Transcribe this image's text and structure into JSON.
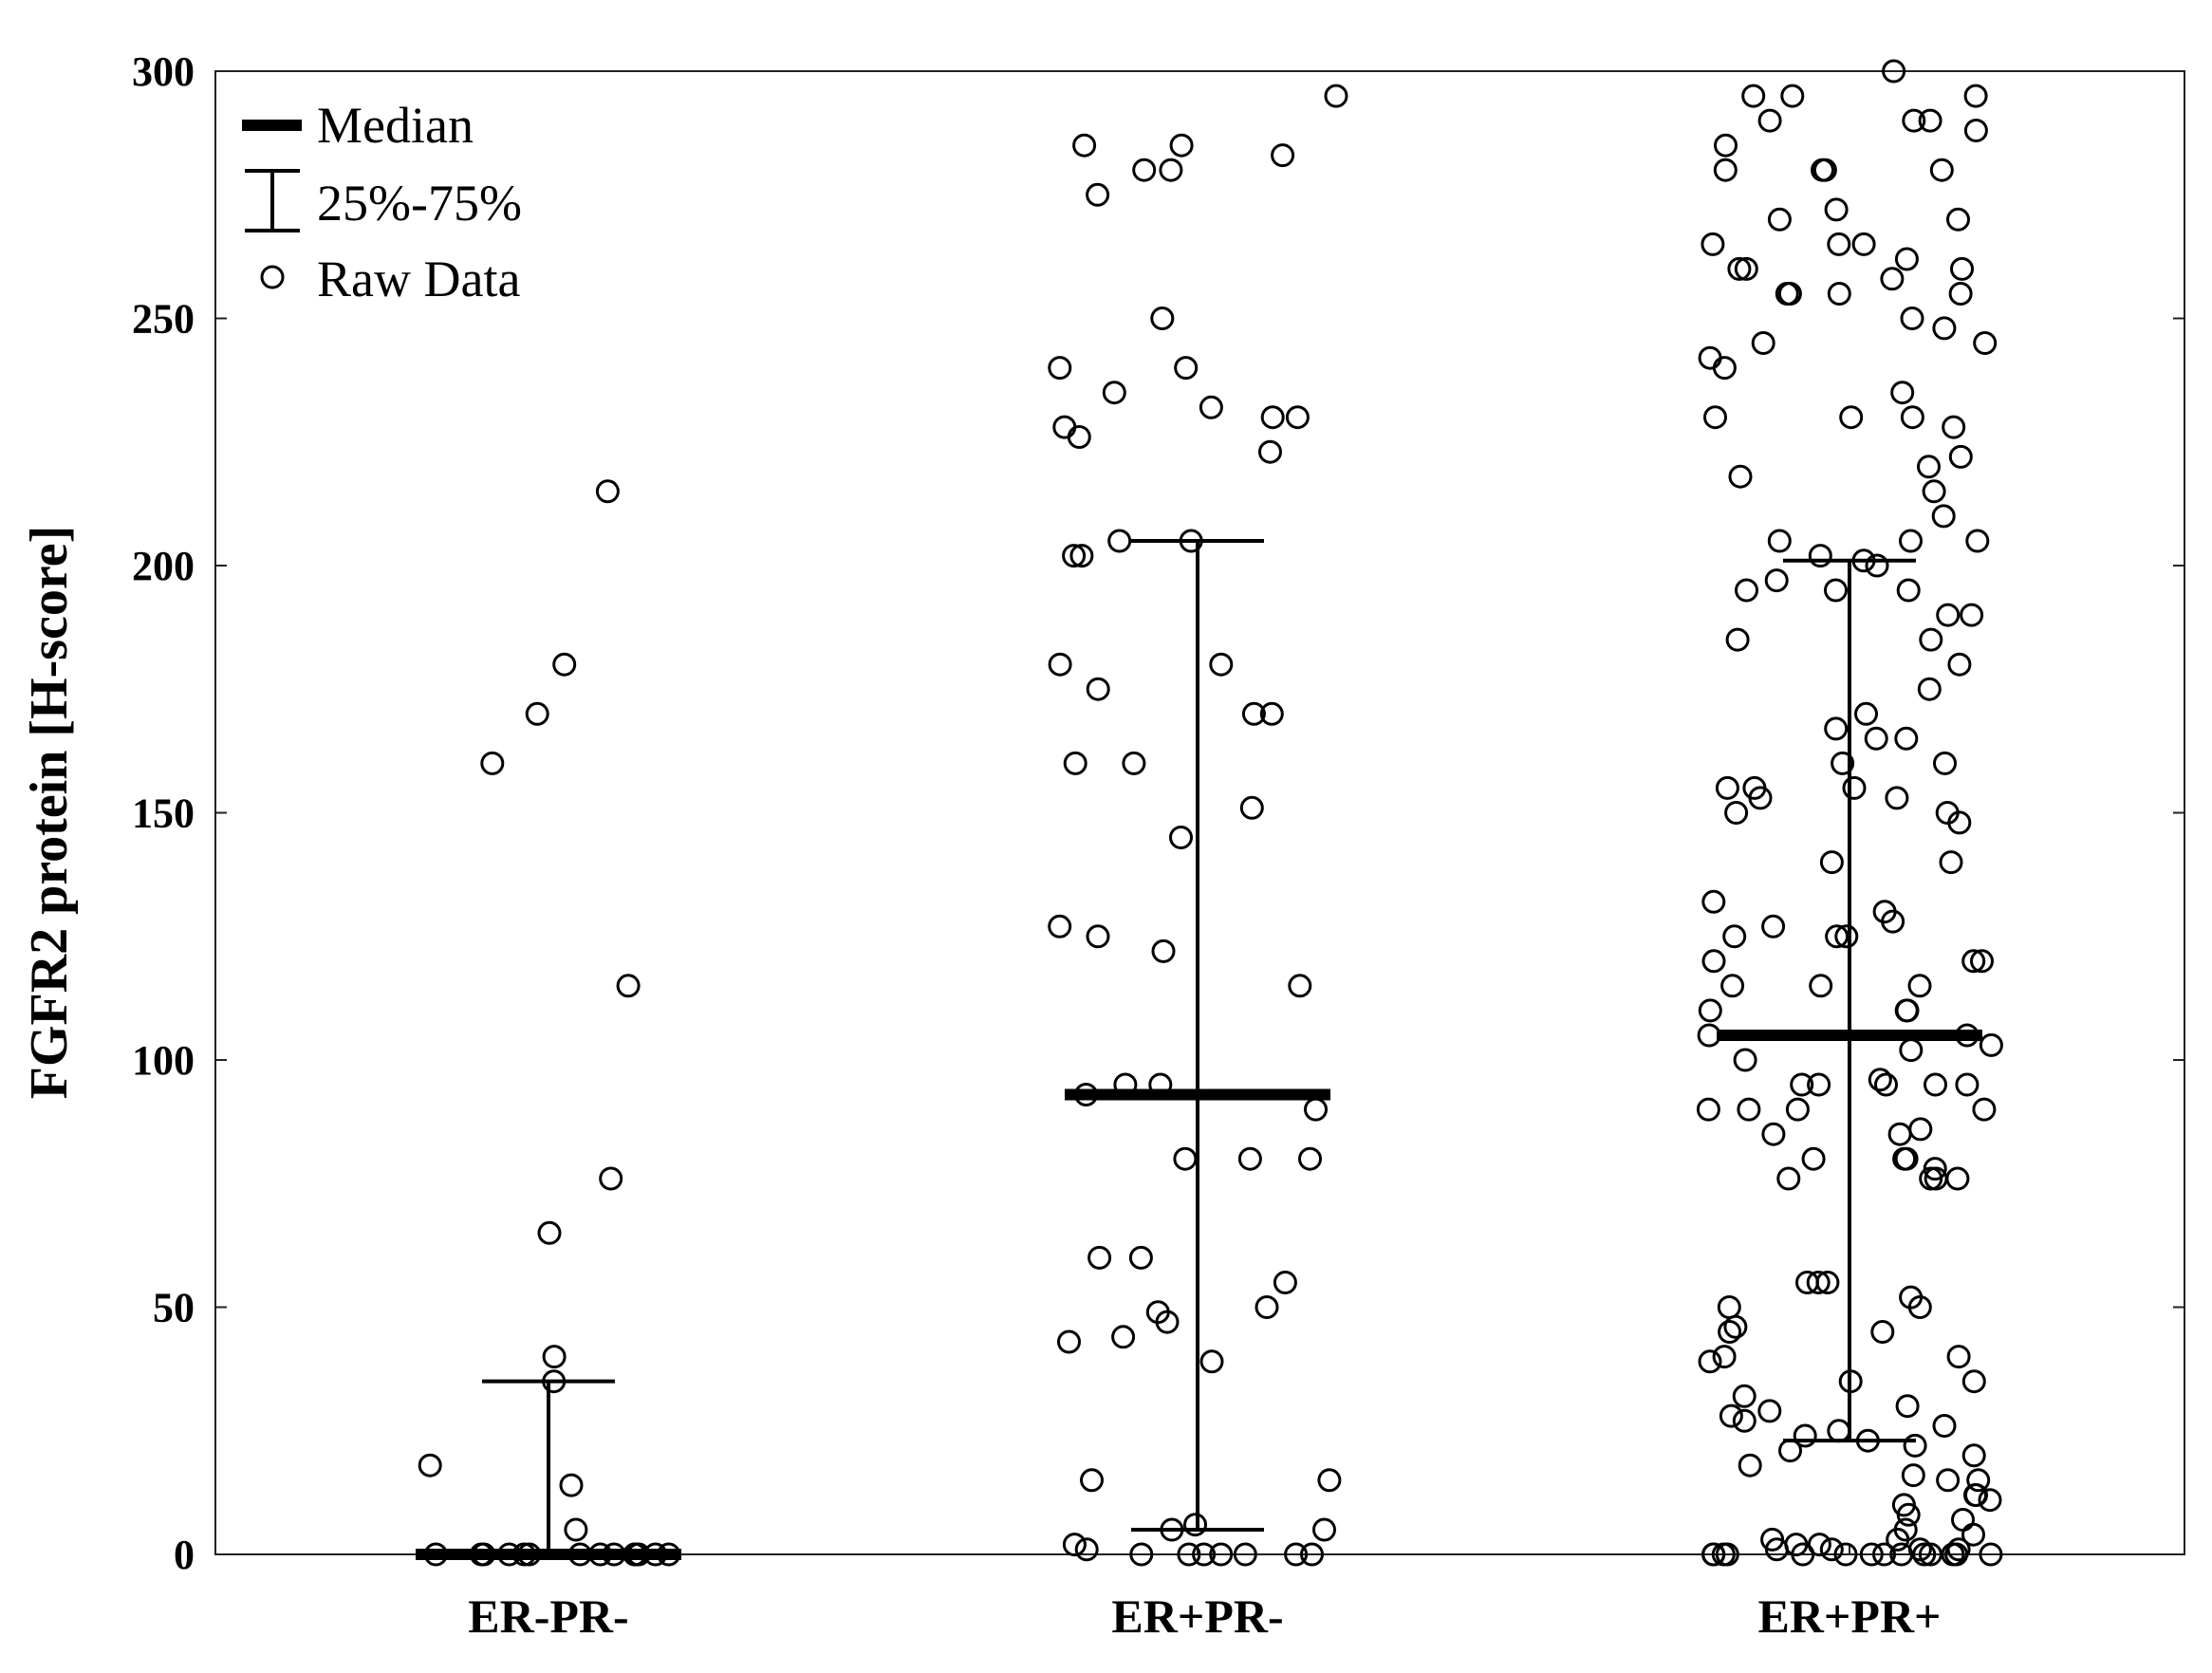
{
  "chart_data": {
    "type": "scatter",
    "ylabel": "FGFR2 protein [H-score]",
    "xlabel": "",
    "ylim": [
      0,
      300
    ],
    "yticks": [
      "0",
      "50",
      "100",
      "150",
      "200",
      "250",
      "300"
    ],
    "categories": [
      "ER-PR-",
      "ER+PR-",
      "ER+PR+"
    ],
    "legend": {
      "position": "top-left",
      "median": "Median",
      "iqr": "25%-75%",
      "raw": "Raw Data"
    },
    "groups": [
      {
        "category": "ER-PR-",
        "median": 0,
        "q1": 0,
        "q3": 35,
        "raw": [
          215,
          180,
          170,
          160,
          115,
          76,
          65,
          40,
          35,
          18,
          14,
          5,
          0,
          0,
          0,
          0,
          0,
          0,
          0,
          0,
          0,
          0,
          0,
          0,
          0,
          0
        ]
      },
      {
        "category": "ER+PR-",
        "median": 93,
        "q1": 5,
        "q3": 205,
        "raw": [
          295,
          285,
          285,
          283,
          280,
          280,
          275,
          250,
          240,
          240,
          235,
          232,
          230,
          230,
          228,
          226,
          223,
          205,
          205,
          202,
          202,
          180,
          180,
          175,
          170,
          170,
          160,
          160,
          151,
          145,
          127,
          125,
          122,
          115,
          95,
          95,
          93,
          90,
          80,
          80,
          80,
          60,
          60,
          55,
          50,
          49,
          47,
          44,
          43,
          39,
          15,
          15,
          6,
          5,
          5,
          2,
          1,
          0,
          0,
          0,
          0,
          0,
          0,
          0
        ]
      },
      {
        "category": "ER+PR+",
        "median": 105,
        "q1": 23,
        "q3": 201,
        "raw": [
          300,
          295,
          295,
          295,
          290,
          290,
          290,
          288,
          285,
          280,
          280,
          280,
          280,
          272,
          270,
          270,
          265,
          265,
          265,
          262,
          260,
          260,
          260,
          258,
          255,
          255,
          255,
          255,
          250,
          248,
          245,
          245,
          242,
          240,
          235,
          230,
          230,
          230,
          228,
          222,
          220,
          218,
          215,
          210,
          205,
          205,
          205,
          202,
          201,
          200,
          197,
          195,
          195,
          195,
          190,
          190,
          185,
          185,
          180,
          175,
          170,
          167,
          165,
          165,
          160,
          160,
          155,
          155,
          155,
          153,
          153,
          150,
          150,
          148,
          140,
          140,
          132,
          130,
          128,
          127,
          125,
          125,
          125,
          120,
          120,
          120,
          115,
          115,
          115,
          110,
          110,
          110,
          105,
          105,
          103,
          102,
          100,
          96,
          95,
          95,
          95,
          95,
          95,
          90,
          90,
          90,
          90,
          86,
          85,
          85,
          80,
          80,
          80,
          78,
          76,
          76,
          76,
          76,
          55,
          55,
          55,
          52,
          50,
          50,
          46,
          45,
          45,
          40,
          40,
          39,
          35,
          35,
          32,
          30,
          29,
          28,
          27,
          26,
          25,
          24,
          23,
          22,
          21,
          20,
          18,
          16,
          15,
          15,
          12,
          12,
          11,
          10,
          8,
          7,
          5,
          4,
          3,
          3,
          2,
          2,
          1,
          1,
          1,
          1,
          0,
          0,
          0,
          0,
          0,
          0,
          0,
          0,
          0,
          0,
          0,
          0,
          0,
          0
        ]
      }
    ]
  }
}
